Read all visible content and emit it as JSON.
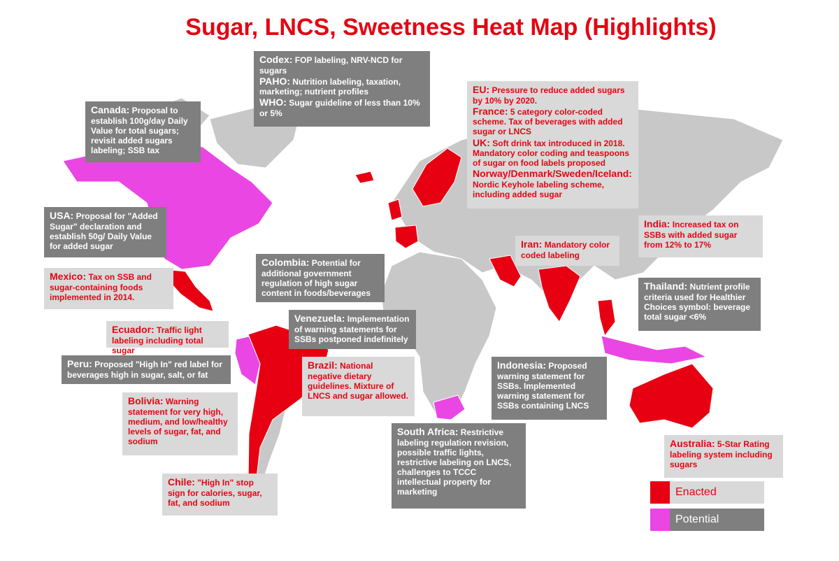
{
  "title": "Sugar, LNCS, Sweetness Heat Map (Highlights)",
  "callouts": [
    {
      "entries": [
        {
          "label": "Codex:",
          "text": "FOP labeling, NRV-NCD for sugars"
        },
        {
          "label": "PAHO:",
          "text": "Nutrition labeling, taxation, marketing; nutrient profiles"
        },
        {
          "label": "WHO:",
          "text": "Sugar guideline of less than 10% or 5%"
        }
      ]
    },
    {
      "entries": [
        {
          "label": "Canada:",
          "text": "Proposal to establish 100g/day Daily Value for total sugars; revisit added sugars labeling; SSB tax"
        }
      ]
    },
    {
      "entries": [
        {
          "label": "USA:",
          "text": "Proposal for \"Added Sugar\" declaration and establish 50g/ Daily Value for added sugar"
        }
      ]
    },
    {
      "entries": [
        {
          "label": "Mexico:",
          "text": "Tax on SSB and sugar-containing foods implemented in 2014."
        }
      ]
    },
    {
      "entries": [
        {
          "label": "Ecuador:",
          "text": "Traffic light labeling including total sugar"
        }
      ]
    },
    {
      "entries": [
        {
          "label": "Peru:",
          "text": "Proposed \"High In\" red label for beverages high in sugar, salt, or fat"
        }
      ]
    },
    {
      "entries": [
        {
          "label": "Bolivia:",
          "text": "Warning statement for very high, medium, and low/healthy levels of sugar, fat, and sodium"
        }
      ]
    },
    {
      "entries": [
        {
          "label": "Chile:",
          "text": "\"High In\" stop sign for calories, sugar, fat, and sodium"
        }
      ]
    },
    {
      "entries": [
        {
          "label": "Colombia:",
          "text": "Potential for additional government regulation of high sugar content in foods/beverages"
        }
      ]
    },
    {
      "entries": [
        {
          "label": "Venezuela:",
          "text": "Implementation of warning statements for SSBs postponed indefinitely"
        }
      ]
    },
    {
      "entries": [
        {
          "label": "Brazil:",
          "text": "National negative dietary guidelines. Mixture of LNCS and sugar allowed."
        }
      ]
    },
    {
      "entries": [
        {
          "label": "South Africa:",
          "text": "Restrictive labeling regulation revision, possible traffic lights, restrictive labeling on LNCS, challenges to TCCC intellectual property for marketing"
        }
      ]
    },
    {
      "entries": [
        {
          "label": "Indonesia:",
          "text": "Proposed warning statement for SSBs.  Implemented warning statement for SSBs containing LNCS"
        }
      ]
    },
    {
      "entries": [
        {
          "label": "EU:",
          "text": "Pressure to reduce added sugars by 10% by 2020."
        },
        {
          "label": "France:",
          "text": "5 category color-coded scheme. Tax of beverages with added sugar or LNCS"
        },
        {
          "label": "UK:",
          "text": "Soft drink tax introduced in 2018. Mandatory color coding and teaspoons of sugar on food labels proposed"
        },
        {
          "label": "Norway/Denmark/Sweden/Iceland:",
          "text": "Nordic Keyhole labeling scheme, including added sugar"
        }
      ]
    },
    {
      "entries": [
        {
          "label": "Iran:",
          "text": "Mandatory color coded labeling"
        }
      ]
    },
    {
      "entries": [
        {
          "label": "India:",
          "text": "Increased tax on SSBs with added sugar from 12% to 17%"
        }
      ]
    },
    {
      "entries": [
        {
          "label": "Thailand:",
          "text": "Nutrient profile criteria used for Healthier Choices symbol: beverage total sugar <6%"
        }
      ]
    },
    {
      "entries": [
        {
          "label": "Australia:",
          "text": "5-Star Rating labeling system including sugars"
        }
      ]
    }
  ],
  "legend": [
    {
      "label": "Enacted"
    },
    {
      "label": "Potential"
    }
  ]
}
